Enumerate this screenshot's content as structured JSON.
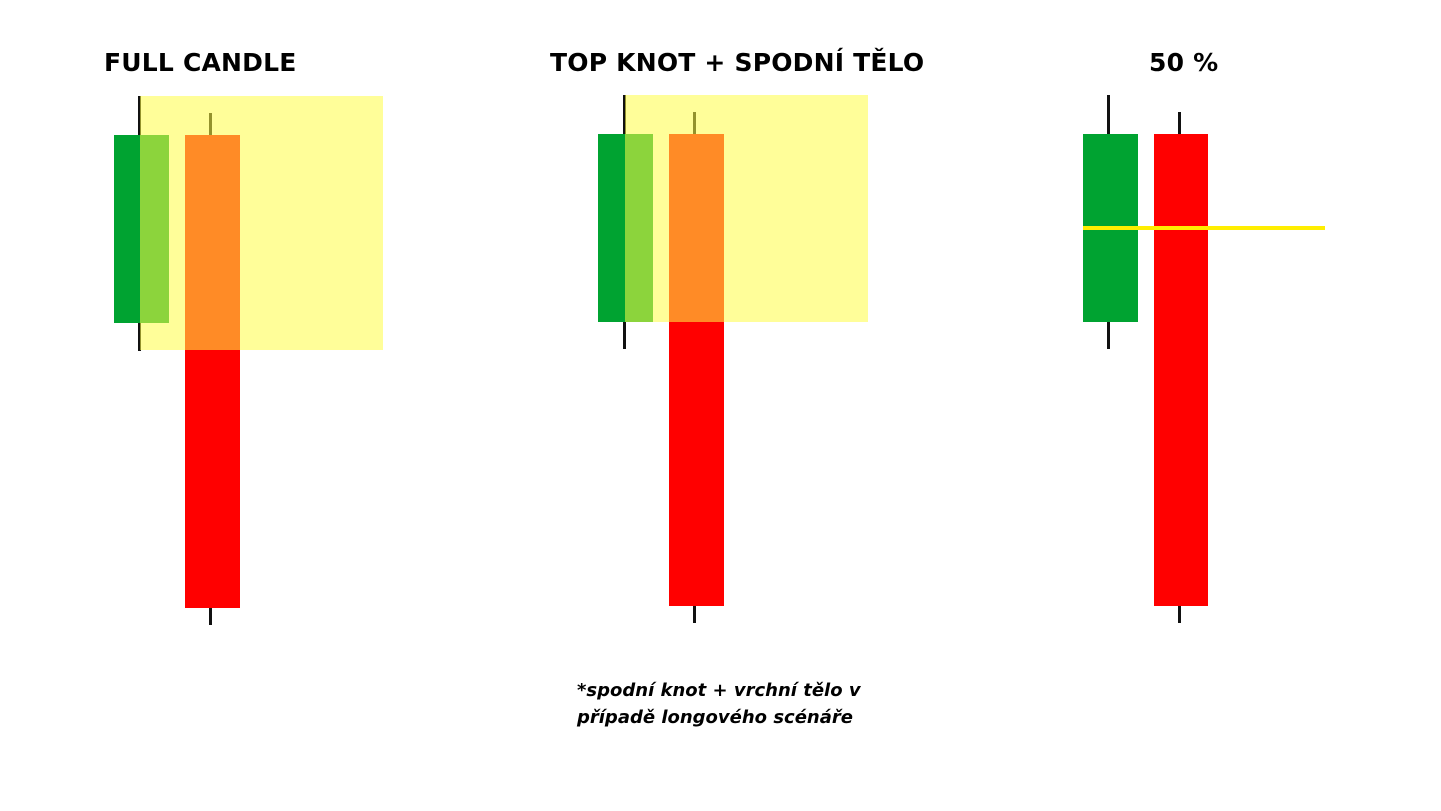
{
  "diagram": {
    "panels": [
      {
        "title": "FULL CANDLE"
      },
      {
        "title": "TOP KNOT + SPODNÍ TĚLO"
      },
      {
        "title": "50 %"
      }
    ],
    "note": {
      "line1": "*spodní knot + vrchní tělo v",
      "line2": "případě longového scénáře"
    },
    "colors": {
      "bullish_candle": "#00a331",
      "bearish_candle": "#ff0000",
      "highlight_zone": "#fffd46",
      "midpoint_line": "#ffee00"
    }
  }
}
